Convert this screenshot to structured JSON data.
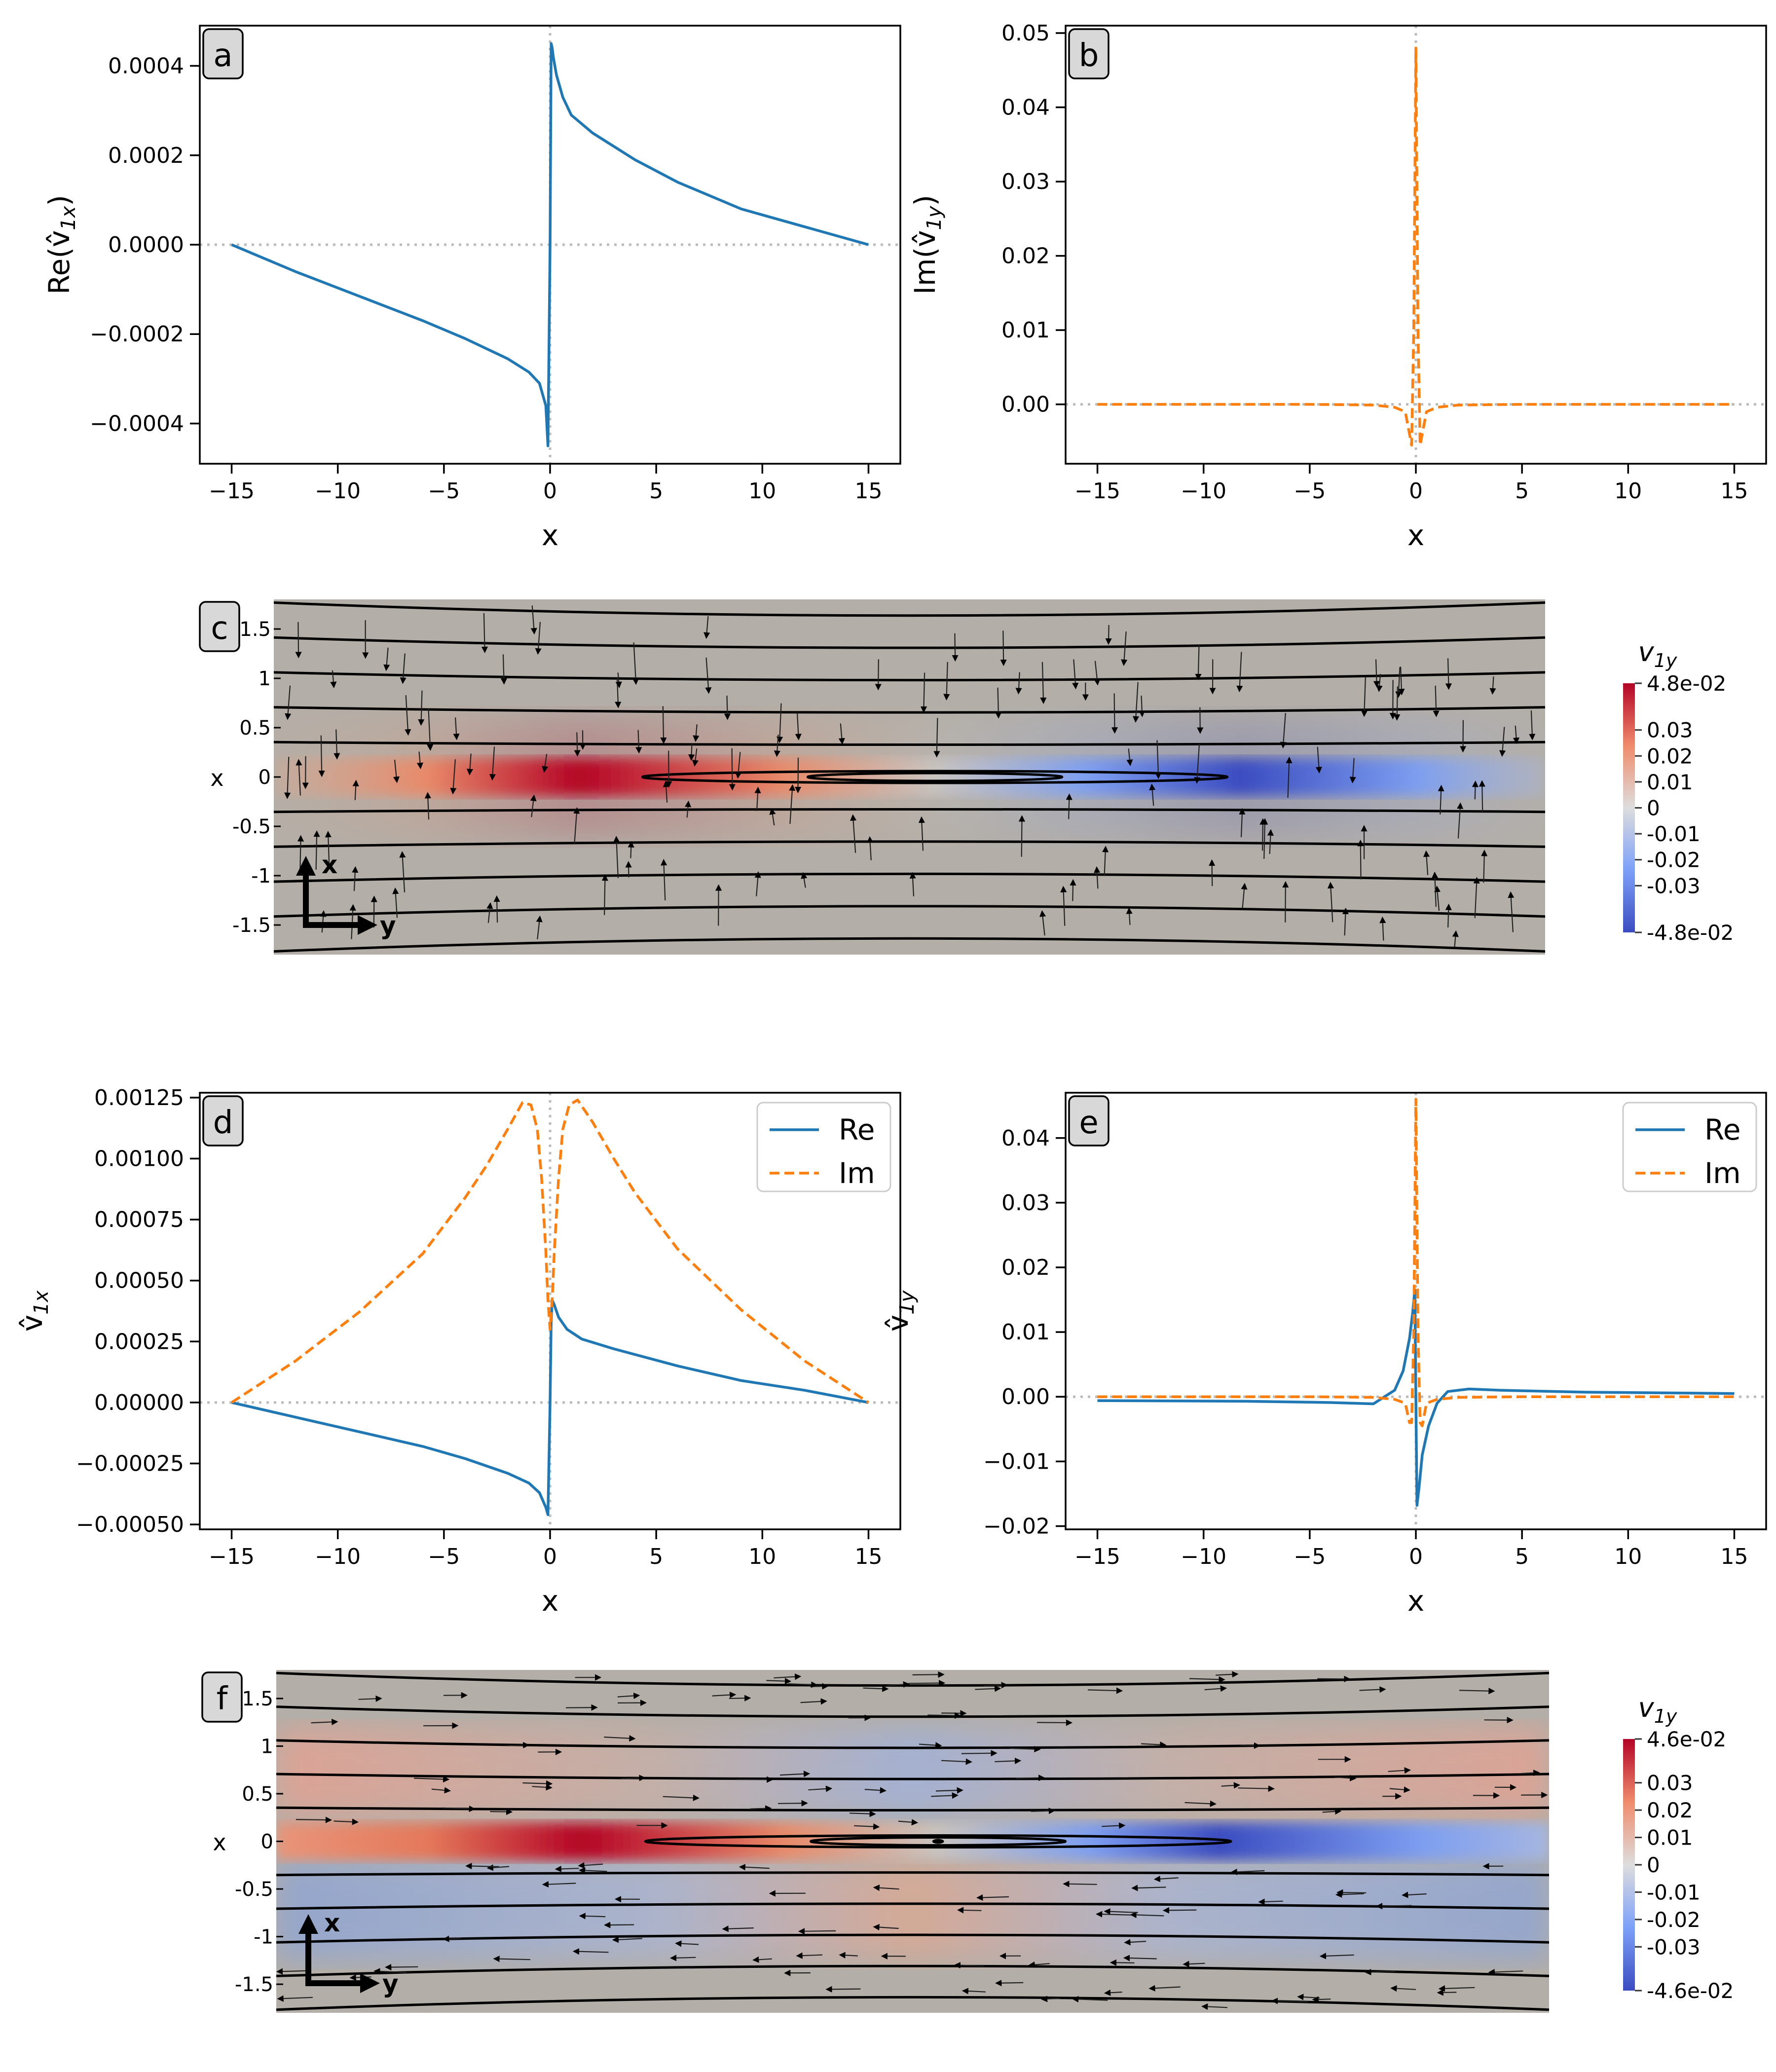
{
  "chart_data": [
    {
      "panel": "a",
      "type": "line",
      "xlabel": "x",
      "ylabel": "Re(v̂",
      "ylabel_sub": "1x",
      "ylabel_close": ")",
      "xlim": [
        -16.5,
        16.5
      ],
      "ylim": [
        -0.00049,
        0.00049
      ],
      "xticks": [
        -15,
        -10,
        -5,
        0,
        5,
        10,
        15
      ],
      "xtick_labels": [
        "−15",
        "−10",
        "−5",
        "0",
        "5",
        "10",
        "15"
      ],
      "yticks": [
        -0.0004,
        -0.0002,
        0,
        0.0002,
        0.0004
      ],
      "ytick_labels": [
        "−0.0004",
        "−0.0002",
        "0.0000",
        "0.0002",
        "0.0004"
      ],
      "series": [
        {
          "name": "Re",
          "style": "solid",
          "color": "#1f77b4",
          "x": [
            -15,
            -12,
            -9,
            -6,
            -4,
            -2,
            -1,
            -0.5,
            -0.2,
            -0.1,
            0,
            0.05,
            0.1,
            0.15,
            0.3,
            0.6,
            1,
            2,
            4,
            6,
            9,
            12,
            15
          ],
          "y": [
            0,
            -6e-05,
            -0.000115,
            -0.00017,
            -0.00021,
            -0.000255,
            -0.000285,
            -0.00031,
            -0.00036,
            -0.00045,
            0,
            0.00045,
            0.00044,
            0.00042,
            0.00038,
            0.00033,
            0.00029,
            0.00025,
            0.00019,
            0.00014,
            8e-05,
            4e-05,
            0
          ]
        }
      ]
    },
    {
      "panel": "b",
      "type": "line",
      "xlabel": "x",
      "ylabel": "Im(v̂",
      "ylabel_sub": "1y",
      "ylabel_close": ")",
      "xlim": [
        -16.5,
        16.5
      ],
      "ylim": [
        -0.008,
        0.051
      ],
      "xticks": [
        -15,
        -10,
        -5,
        0,
        5,
        10,
        15
      ],
      "xtick_labels": [
        "−15",
        "−10",
        "−5",
        "0",
        "5",
        "10",
        "15"
      ],
      "yticks": [
        0,
        0.01,
        0.02,
        0.03,
        0.04,
        0.05
      ],
      "ytick_labels": [
        "0.00",
        "0.01",
        "0.02",
        "0.03",
        "0.04",
        "0.05"
      ],
      "series": [
        {
          "name": "Im",
          "style": "dashed",
          "color": "#ff7f0e",
          "x": [
            -15,
            -5,
            -2,
            -1,
            -0.5,
            -0.3,
            -0.2,
            -0.1,
            0,
            0.1,
            0.2,
            0.3,
            0.5,
            1,
            2,
            5,
            15
          ],
          "y": [
            0,
            0,
            -0.0001,
            -0.0004,
            -0.001,
            -0.004,
            -0.0055,
            0.01,
            0.048,
            0.01,
            -0.0055,
            -0.004,
            -0.001,
            -0.0004,
            -0.0001,
            0,
            0
          ]
        }
      ]
    },
    {
      "panel": "d",
      "type": "line",
      "xlabel": "x",
      "ylabel": "v̂",
      "ylabel_sub": "1x",
      "ylabel_close": "",
      "xlim": [
        -16.5,
        16.5
      ],
      "ylim": [
        -0.00052,
        0.00127
      ],
      "xticks": [
        -15,
        -10,
        -5,
        0,
        5,
        10,
        15
      ],
      "xtick_labels": [
        "−15",
        "−10",
        "−5",
        "0",
        "5",
        "10",
        "15"
      ],
      "yticks": [
        -0.0005,
        -0.00025,
        0,
        0.00025,
        0.0005,
        0.00075,
        0.001,
        0.00125
      ],
      "ytick_labels": [
        "−0.00050",
        "−0.00025",
        "0.00000",
        "0.00025",
        "0.00050",
        "0.00075",
        "0.00100",
        "0.00125"
      ],
      "legend": [
        "Re",
        "Im"
      ],
      "series": [
        {
          "name": "Re",
          "style": "solid",
          "color": "#1f77b4",
          "x": [
            -15,
            -12,
            -9,
            -6,
            -4,
            -2,
            -1,
            -0.5,
            -0.2,
            -0.1,
            0,
            0.05,
            0.1,
            0.2,
            0.4,
            0.8,
            1.5,
            3,
            6,
            9,
            12,
            15
          ],
          "y": [
            0,
            -6e-05,
            -0.00012,
            -0.00018,
            -0.00023,
            -0.00029,
            -0.00033,
            -0.00037,
            -0.00043,
            -0.00046,
            0,
            0.00033,
            0.00042,
            0.0004,
            0.00035,
            0.0003,
            0.00026,
            0.00022,
            0.00015,
            9e-05,
            5e-05,
            0
          ]
        },
        {
          "name": "Im",
          "style": "dashed",
          "color": "#ff7f0e",
          "x": [
            -15,
            -12,
            -9,
            -6,
            -4,
            -3,
            -2,
            -1.3,
            -0.9,
            -0.6,
            -0.4,
            -0.2,
            -0.1,
            0,
            0.1,
            0.2,
            0.4,
            0.6,
            0.9,
            1.3,
            2,
            3,
            4,
            6,
            9,
            12,
            15
          ],
          "y": [
            0,
            0.00017,
            0.00037,
            0.00061,
            0.00084,
            0.00097,
            0.00112,
            0.00123,
            0.00122,
            0.00112,
            0.00092,
            0.00062,
            0.00042,
            0.0003,
            0.00042,
            0.00062,
            0.00092,
            0.00112,
            0.00122,
            0.00124,
            0.00115,
            0.001,
            0.00086,
            0.00063,
            0.00038,
            0.00017,
            0
          ]
        }
      ]
    },
    {
      "panel": "e",
      "type": "line",
      "xlabel": "x",
      "ylabel": "v̂",
      "ylabel_sub": "1y",
      "ylabel_close": "",
      "xlim": [
        -16.5,
        16.5
      ],
      "ylim": [
        -0.0205,
        0.047
      ],
      "xticks": [
        -15,
        -10,
        -5,
        0,
        5,
        10,
        15
      ],
      "xtick_labels": [
        "−15",
        "−10",
        "−5",
        "0",
        "5",
        "10",
        "15"
      ],
      "yticks": [
        -0.02,
        -0.01,
        0,
        0.01,
        0.02,
        0.03,
        0.04
      ],
      "ytick_labels": [
        "−0.02",
        "−0.01",
        "0.00",
        "0.01",
        "0.02",
        "0.03",
        "0.04"
      ],
      "legend": [
        "Re",
        "Im"
      ],
      "series": [
        {
          "name": "Re",
          "style": "solid",
          "color": "#1f77b4",
          "x": [
            -15,
            -8,
            -4,
            -2,
            -1,
            -0.6,
            -0.3,
            -0.15,
            -0.05,
            0,
            0.05,
            0.15,
            0.3,
            0.6,
            1,
            1.5,
            2.5,
            4,
            8,
            15
          ],
          "y": [
            -0.0006,
            -0.0007,
            -0.0009,
            -0.0011,
            0.001,
            0.004,
            0.009,
            0.013,
            0.0165,
            0,
            -0.0168,
            -0.014,
            -0.009,
            -0.0045,
            -0.001,
            0.0008,
            0.0012,
            0.001,
            0.0007,
            0.0005
          ]
        },
        {
          "name": "Im",
          "style": "dashed",
          "color": "#ff7f0e",
          "x": [
            -15,
            -5,
            -2,
            -1,
            -0.5,
            -0.3,
            -0.2,
            -0.1,
            0,
            0.1,
            0.2,
            0.3,
            0.5,
            1,
            2,
            5,
            15
          ],
          "y": [
            0,
            0,
            -0.0001,
            -0.0004,
            -0.001,
            -0.004,
            -0.004,
            0.01,
            0.046,
            0.01,
            -0.004,
            -0.0045,
            -0.001,
            -0.0004,
            -0.0001,
            0,
            0
          ]
        }
      ]
    },
    {
      "panel": "c",
      "type": "heatmap",
      "ylabel": "x",
      "yticks": [
        1.5,
        1,
        0.5,
        0,
        -0.5,
        -1,
        -1.5
      ],
      "ytick_labels": [
        "1.5",
        "1",
        "0.5",
        "0",
        "-0.5",
        "-1",
        "-1.5"
      ],
      "axes_arrows": [
        "x",
        "y"
      ],
      "colorbar_title": "v",
      "colorbar_sub": "1y",
      "colorbar_ticks": [
        0.048,
        0.03,
        0.02,
        0.01,
        0,
        -0.01,
        -0.02,
        -0.03,
        -0.048
      ],
      "colorbar_labels": [
        "4.8e-02",
        "0.03",
        "0.02",
        "0.01",
        "0",
        "-0.01",
        "-0.02",
        "-0.03",
        "-4.8e-02"
      ],
      "vmin": -0.048,
      "vmax": 0.048,
      "arrow_pattern": "vertical"
    },
    {
      "panel": "f",
      "type": "heatmap",
      "ylabel": "x",
      "yticks": [
        1.5,
        1,
        0.5,
        0,
        -0.5,
        -1,
        -1.5
      ],
      "ytick_labels": [
        "1.5",
        "1",
        "0.5",
        "0",
        "-0.5",
        "-1",
        "-1.5"
      ],
      "axes_arrows": [
        "x",
        "y"
      ],
      "colorbar_title": "v",
      "colorbar_sub": "1y",
      "colorbar_ticks": [
        0.046,
        0.03,
        0.02,
        0.01,
        0,
        -0.01,
        -0.02,
        -0.03,
        -0.046
      ],
      "colorbar_labels": [
        "4.6e-02",
        "0.03",
        "0.02",
        "0.01",
        "0",
        "-0.01",
        "-0.02",
        "-0.03",
        "-4.6e-02"
      ],
      "vmin": -0.046,
      "vmax": 0.046,
      "arrow_pattern": "horizontal"
    }
  ]
}
